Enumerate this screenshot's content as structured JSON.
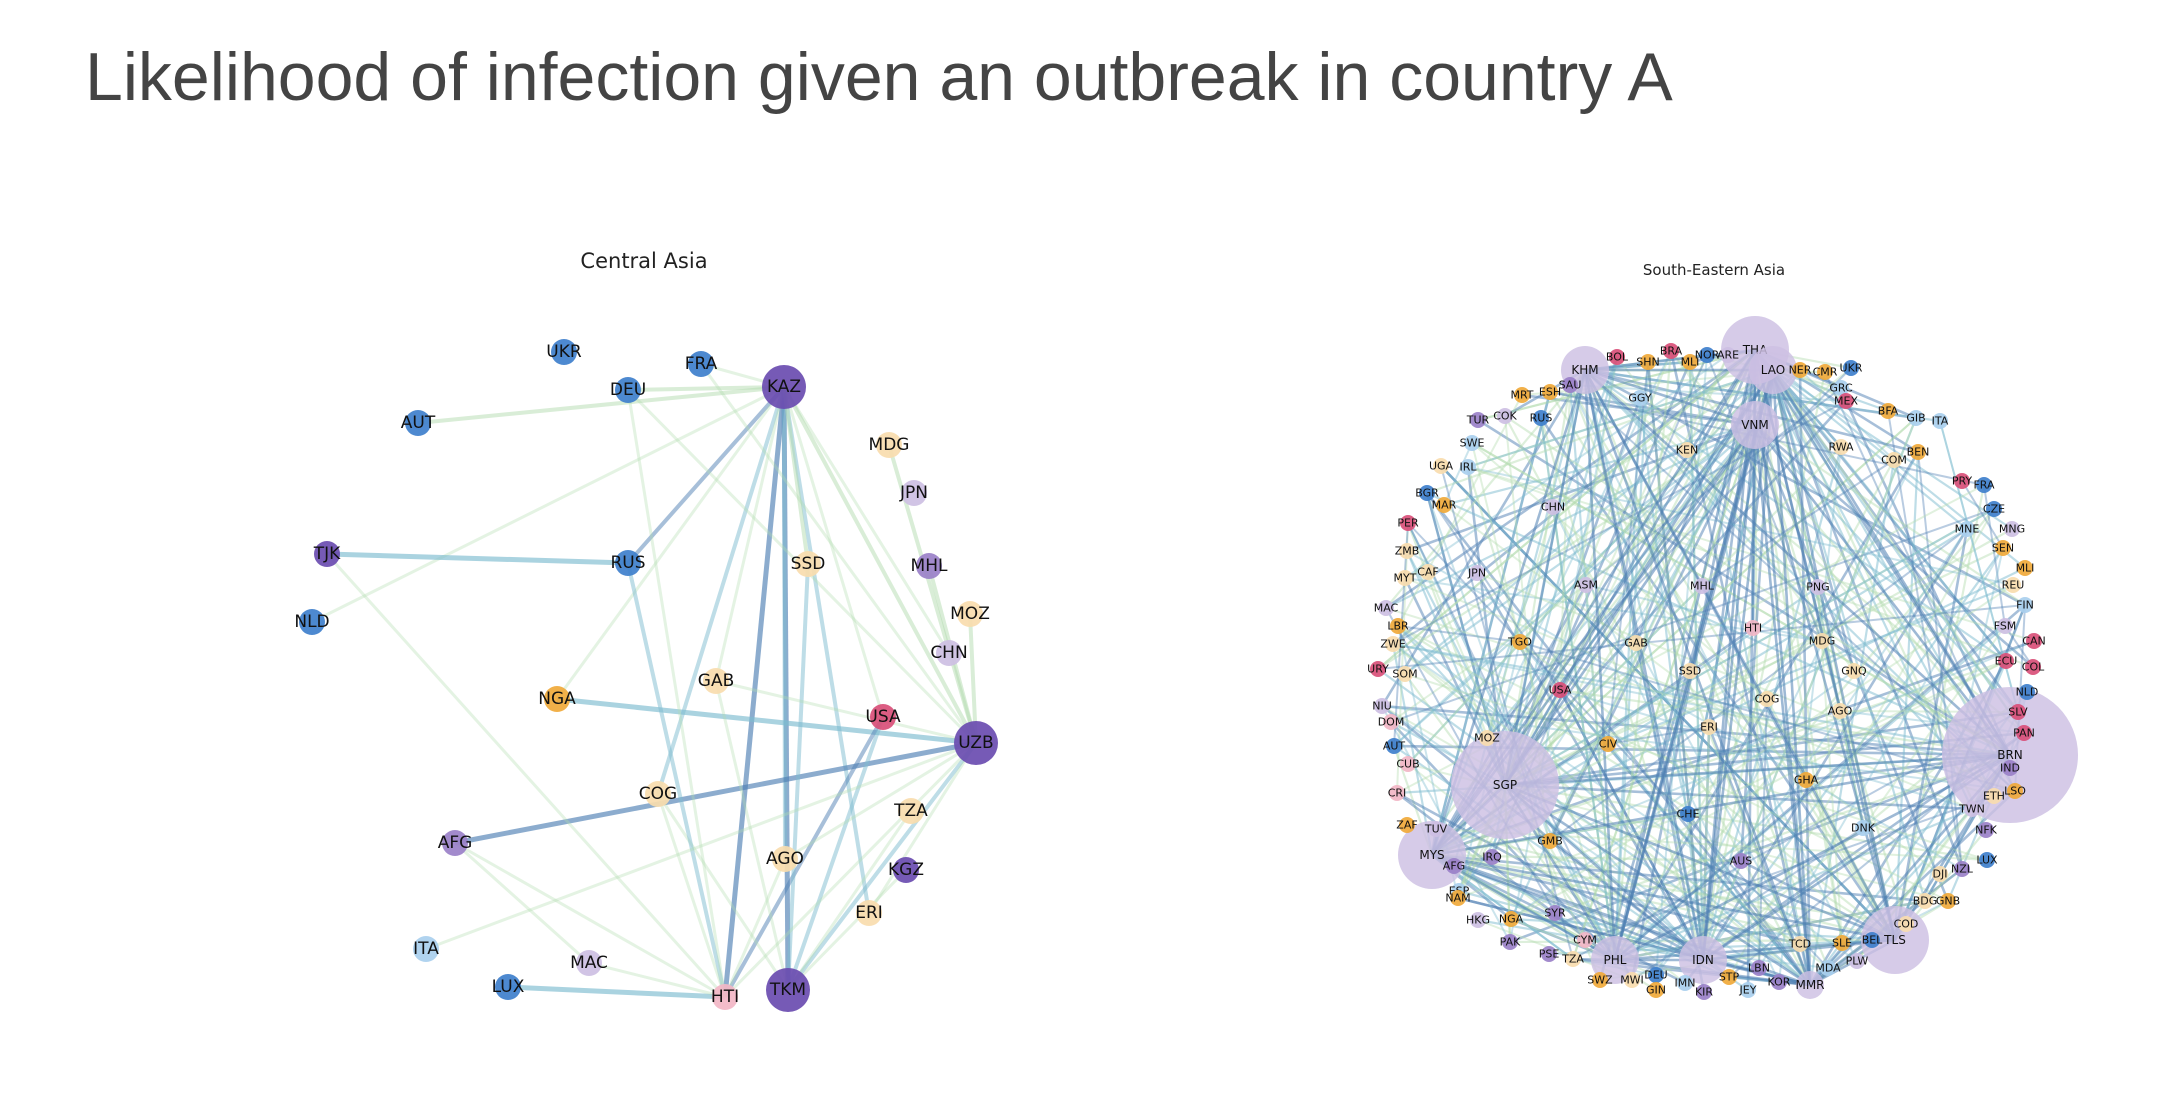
{
  "title": "Likelihood of infection given an outbreak in country A",
  "colors": {
    "dark_purple": "#6a4cb0",
    "purple": "#9a80c8",
    "light_purple": "#cdbfe3",
    "blue": "#3e7fcc",
    "light_blue": "#a9cfee",
    "orange": "#f0a93a",
    "cream": "#f8dcae",
    "red": "#d94f78",
    "pink": "#f2b6c6",
    "edge_green": "#b3dcb0",
    "edge_teal": "#7dbcd0",
    "edge_blue": "#4f7fb3"
  },
  "panels": [
    {
      "title": "Central Asia",
      "nodes": [
        {
          "id": "KAZ",
          "color": "dark_purple",
          "size": 3
        },
        {
          "id": "UZB",
          "color": "dark_purple",
          "size": 3
        },
        {
          "id": "TKM",
          "color": "dark_purple",
          "size": 3
        },
        {
          "id": "KGZ",
          "color": "dark_purple",
          "size": 2
        },
        {
          "id": "TJK",
          "color": "dark_purple",
          "size": 2
        },
        {
          "id": "UKR",
          "color": "blue",
          "size": 2
        },
        {
          "id": "FRA",
          "color": "blue",
          "size": 2
        },
        {
          "id": "DEU",
          "color": "blue",
          "size": 2
        },
        {
          "id": "AUT",
          "color": "blue",
          "size": 2
        },
        {
          "id": "RUS",
          "color": "blue",
          "size": 2
        },
        {
          "id": "NLD",
          "color": "blue",
          "size": 2
        },
        {
          "id": "LUX",
          "color": "blue",
          "size": 2
        },
        {
          "id": "ITA",
          "color": "light_blue",
          "size": 2
        },
        {
          "id": "MDG",
          "color": "cream",
          "size": 2
        },
        {
          "id": "JPN",
          "color": "light_purple",
          "size": 2
        },
        {
          "id": "MHL",
          "color": "purple",
          "size": 2
        },
        {
          "id": "MOZ",
          "color": "cream",
          "size": 2
        },
        {
          "id": "CHN",
          "color": "light_purple",
          "size": 2
        },
        {
          "id": "SSD",
          "color": "cream",
          "size": 2
        },
        {
          "id": "GAB",
          "color": "cream",
          "size": 2
        },
        {
          "id": "NGA",
          "color": "orange",
          "size": 2
        },
        {
          "id": "USA",
          "color": "red",
          "size": 2
        },
        {
          "id": "COG",
          "color": "cream",
          "size": 2
        },
        {
          "id": "TZA",
          "color": "cream",
          "size": 2
        },
        {
          "id": "AFG",
          "color": "purple",
          "size": 2
        },
        {
          "id": "AGO",
          "color": "cream",
          "size": 2
        },
        {
          "id": "ERI",
          "color": "cream",
          "size": 2
        },
        {
          "id": "MAC",
          "color": "light_purple",
          "size": 2
        },
        {
          "id": "HTI",
          "color": "pink",
          "size": 2
        }
      ],
      "edges": [
        [
          "KAZ",
          "TKM",
          "edge_blue",
          3
        ],
        [
          "KAZ",
          "HTI",
          "edge_blue",
          3
        ],
        [
          "KAZ",
          "AGO",
          "edge_teal",
          2
        ],
        [
          "KAZ",
          "RUS",
          "edge_blue",
          2
        ],
        [
          "KAZ",
          "ERI",
          "edge_teal",
          2
        ],
        [
          "KAZ",
          "COG",
          "edge_teal",
          2
        ],
        [
          "KAZ",
          "DEU",
          "edge_green",
          2
        ],
        [
          "KAZ",
          "AUT",
          "edge_green",
          2
        ],
        [
          "KAZ",
          "UZB",
          "edge_green",
          2
        ],
        [
          "KAZ",
          "SSD",
          "edge_green",
          2
        ],
        [
          "KAZ",
          "NLD",
          "edge_green",
          1
        ],
        [
          "KAZ",
          "FRA",
          "edge_green",
          1
        ],
        [
          "KAZ",
          "CHN",
          "edge_green",
          1
        ],
        [
          "KAZ",
          "NGA",
          "edge_green",
          1
        ],
        [
          "KAZ",
          "GAB",
          "edge_green",
          1
        ],
        [
          "KAZ",
          "USA",
          "edge_green",
          1
        ],
        [
          "TJK",
          "RUS",
          "edge_teal",
          3
        ],
        [
          "NGA",
          "UZB",
          "edge_teal",
          3
        ],
        [
          "AFG",
          "UZB",
          "edge_blue",
          3
        ],
        [
          "LUX",
          "HTI",
          "edge_teal",
          3
        ],
        [
          "HTI",
          "USA",
          "edge_blue",
          2
        ],
        [
          "TKM",
          "UZB",
          "edge_teal",
          2
        ],
        [
          "TKM",
          "USA",
          "edge_teal",
          2
        ],
        [
          "TKM",
          "SSD",
          "edge_teal",
          2
        ],
        [
          "TKM",
          "COG",
          "edge_green",
          1
        ],
        [
          "TKM",
          "GAB",
          "edge_green",
          1
        ],
        [
          "TKM",
          "KGZ",
          "edge_green",
          1
        ],
        [
          "TKM",
          "TZA",
          "edge_green",
          1
        ],
        [
          "UZB",
          "MDG",
          "edge_green",
          2
        ],
        [
          "UZB",
          "MHL",
          "edge_green",
          2
        ],
        [
          "UZB",
          "MOZ",
          "edge_green",
          2
        ],
        [
          "UZB",
          "DEU",
          "edge_green",
          1
        ],
        [
          "UZB",
          "FRA",
          "edge_green",
          1
        ],
        [
          "UZB",
          "GAB",
          "edge_green",
          1
        ],
        [
          "UZB",
          "HTI",
          "edge_green",
          1
        ],
        [
          "UZB",
          "AGO",
          "edge_green",
          1
        ],
        [
          "UZB",
          "ERI",
          "edge_green",
          1
        ],
        [
          "RUS",
          "HTI",
          "edge_teal",
          2
        ],
        [
          "AFG",
          "MAC",
          "edge_green",
          1
        ],
        [
          "AFG",
          "HTI",
          "edge_green",
          1
        ],
        [
          "TJK",
          "HTI",
          "edge_green",
          1
        ],
        [
          "ITA",
          "UZB",
          "edge_green",
          1
        ],
        [
          "COG",
          "HTI",
          "edge_green",
          1
        ],
        [
          "AGO",
          "HTI",
          "edge_green",
          1
        ],
        [
          "DEU",
          "HTI",
          "edge_green",
          1
        ],
        [
          "MAC",
          "HTI",
          "edge_green",
          1
        ]
      ]
    },
    {
      "title": "South-Eastern Asia",
      "hubs": [
        {
          "id": "SGP",
          "color": "light_purple",
          "size": 5
        },
        {
          "id": "BRN",
          "color": "light_purple",
          "size": 6
        },
        {
          "id": "THA",
          "color": "light_purple",
          "size": 3
        },
        {
          "id": "MYS",
          "color": "light_purple",
          "size": 3
        },
        {
          "id": "TLS",
          "color": "light_purple",
          "size": 3
        },
        {
          "id": "KHM",
          "color": "light_purple",
          "size": 2
        },
        {
          "id": "VNM",
          "color": "light_purple",
          "size": 2
        },
        {
          "id": "LAO",
          "color": "light_purple",
          "size": 2
        },
        {
          "id": "IDN",
          "color": "light_purple",
          "size": 2
        },
        {
          "id": "PHL",
          "color": "light_purple",
          "size": 2
        },
        {
          "id": "MMR",
          "color": "light_purple",
          "size": 1
        }
      ],
      "nodes": [
        {
          "id": "BOL",
          "color": "red"
        },
        {
          "id": "BRA",
          "color": "red"
        },
        {
          "id": "SHN",
          "color": "orange"
        },
        {
          "id": "MLI",
          "color": "orange"
        },
        {
          "id": "NOR",
          "color": "blue"
        },
        {
          "id": "ARE",
          "color": "light_purple"
        },
        {
          "id": "NER",
          "color": "orange"
        },
        {
          "id": "CMR",
          "color": "orange"
        },
        {
          "id": "UKR",
          "color": "blue"
        },
        {
          "id": "SAU",
          "color": "purple"
        },
        {
          "id": "MRT",
          "color": "orange"
        },
        {
          "id": "ESH",
          "color": "orange"
        },
        {
          "id": "GGY",
          "color": "light_blue"
        },
        {
          "id": "GRC",
          "color": "light_blue"
        },
        {
          "id": "MEX",
          "color": "red"
        },
        {
          "id": "BFA",
          "color": "orange"
        },
        {
          "id": "GIB",
          "color": "light_blue"
        },
        {
          "id": "ITA",
          "color": "light_blue"
        },
        {
          "id": "TUR",
          "color": "purple"
        },
        {
          "id": "COK",
          "color": "light_purple"
        },
        {
          "id": "RUS",
          "color": "blue"
        },
        {
          "id": "SWE",
          "color": "light_blue"
        },
        {
          "id": "KEN",
          "color": "cream"
        },
        {
          "id": "RWA",
          "color": "cream"
        },
        {
          "id": "COM",
          "color": "cream"
        },
        {
          "id": "BEN",
          "color": "orange"
        },
        {
          "id": "UGA",
          "color": "cream"
        },
        {
          "id": "IRL",
          "color": "light_blue"
        },
        {
          "id": "PRY",
          "color": "red"
        },
        {
          "id": "FRA",
          "color": "blue"
        },
        {
          "id": "BGR",
          "color": "blue"
        },
        {
          "id": "MAR",
          "color": "orange"
        },
        {
          "id": "CHN",
          "color": "light_purple"
        },
        {
          "id": "CZE",
          "color": "blue"
        },
        {
          "id": "PER",
          "color": "red"
        },
        {
          "id": "MNE",
          "color": "light_blue"
        },
        {
          "id": "MNG",
          "color": "light_purple"
        },
        {
          "id": "ZMB",
          "color": "cream"
        },
        {
          "id": "SEN",
          "color": "orange"
        },
        {
          "id": "MYT",
          "color": "cream"
        },
        {
          "id": "CAF",
          "color": "cream"
        },
        {
          "id": "MLI",
          "color": "orange"
        },
        {
          "id": "JPN",
          "color": "light_purple"
        },
        {
          "id": "REU",
          "color": "cream"
        },
        {
          "id": "ASM",
          "color": "light_purple"
        },
        {
          "id": "MHL",
          "color": "light_purple"
        },
        {
          "id": "PNG",
          "color": "light_purple"
        },
        {
          "id": "MAC",
          "color": "light_purple"
        },
        {
          "id": "FIN",
          "color": "light_blue"
        },
        {
          "id": "LBR",
          "color": "orange"
        },
        {
          "id": "FSM",
          "color": "light_purple"
        },
        {
          "id": "HTI",
          "color": "pink"
        },
        {
          "id": "ZWE",
          "color": "cream"
        },
        {
          "id": "TGO",
          "color": "orange"
        },
        {
          "id": "GAB",
          "color": "cream"
        },
        {
          "id": "MDG",
          "color": "cream"
        },
        {
          "id": "ECU",
          "color": "red"
        },
        {
          "id": "CAN",
          "color": "red"
        },
        {
          "id": "URY",
          "color": "red"
        },
        {
          "id": "SOM",
          "color": "cream"
        },
        {
          "id": "SSD",
          "color": "cream"
        },
        {
          "id": "COL",
          "color": "red"
        },
        {
          "id": "GNQ",
          "color": "cream"
        },
        {
          "id": "USA",
          "color": "red"
        },
        {
          "id": "NLD",
          "color": "blue"
        },
        {
          "id": "NIU",
          "color": "light_purple"
        },
        {
          "id": "COG",
          "color": "cream"
        },
        {
          "id": "AGO",
          "color": "cream"
        },
        {
          "id": "SLV",
          "color": "red"
        },
        {
          "id": "DOM",
          "color": "pink"
        },
        {
          "id": "ERI",
          "color": "cream"
        },
        {
          "id": "PAN",
          "color": "red"
        },
        {
          "id": "AUT",
          "color": "blue"
        },
        {
          "id": "MOZ",
          "color": "cream"
        },
        {
          "id": "CIV",
          "color": "orange"
        },
        {
          "id": "CUB",
          "color": "pink"
        },
        {
          "id": "IND",
          "color": "purple"
        },
        {
          "id": "ETH",
          "color": "cream"
        },
        {
          "id": "LSO",
          "color": "orange"
        },
        {
          "id": "GHA",
          "color": "orange"
        },
        {
          "id": "CRI",
          "color": "pink"
        },
        {
          "id": "TWN",
          "color": "light_purple"
        },
        {
          "id": "CHE",
          "color": "blue"
        },
        {
          "id": "ZAF",
          "color": "orange"
        },
        {
          "id": "TUV",
          "color": "light_purple"
        },
        {
          "id": "DNK",
          "color": "light_blue"
        },
        {
          "id": "NFK",
          "color": "purple"
        },
        {
          "id": "GMB",
          "color": "orange"
        },
        {
          "id": "IRQ",
          "color": "purple"
        },
        {
          "id": "AFG",
          "color": "purple"
        },
        {
          "id": "AUS",
          "color": "purple"
        },
        {
          "id": "LUX",
          "color": "blue"
        },
        {
          "id": "NZL",
          "color": "purple"
        },
        {
          "id": "DJI",
          "color": "cream"
        },
        {
          "id": "ESP",
          "color": "light_blue"
        },
        {
          "id": "NAM",
          "color": "orange"
        },
        {
          "id": "BDG",
          "color": "cream"
        },
        {
          "id": "GNB",
          "color": "orange"
        },
        {
          "id": "HKG",
          "color": "light_purple"
        },
        {
          "id": "NGA",
          "color": "orange"
        },
        {
          "id": "SYR",
          "color": "purple"
        },
        {
          "id": "COD",
          "color": "cream"
        },
        {
          "id": "CYM",
          "color": "pink"
        },
        {
          "id": "TCD",
          "color": "cream"
        },
        {
          "id": "SLE",
          "color": "orange"
        },
        {
          "id": "BEL",
          "color": "blue"
        },
        {
          "id": "PAK",
          "color": "purple"
        },
        {
          "id": "PSE",
          "color": "purple"
        },
        {
          "id": "TZA",
          "color": "cream"
        },
        {
          "id": "LBN",
          "color": "purple"
        },
        {
          "id": "MDA",
          "color": "light_blue"
        },
        {
          "id": "PLW",
          "color": "light_purple"
        },
        {
          "id": "SWZ",
          "color": "orange"
        },
        {
          "id": "MWI",
          "color": "cream"
        },
        {
          "id": "DEU",
          "color": "blue"
        },
        {
          "id": "IMN",
          "color": "light_blue"
        },
        {
          "id": "STP",
          "color": "orange"
        },
        {
          "id": "KOR",
          "color": "purple"
        },
        {
          "id": "GIN",
          "color": "orange"
        },
        {
          "id": "KIR",
          "color": "purple"
        },
        {
          "id": "JEY",
          "color": "light_blue"
        }
      ]
    }
  ]
}
